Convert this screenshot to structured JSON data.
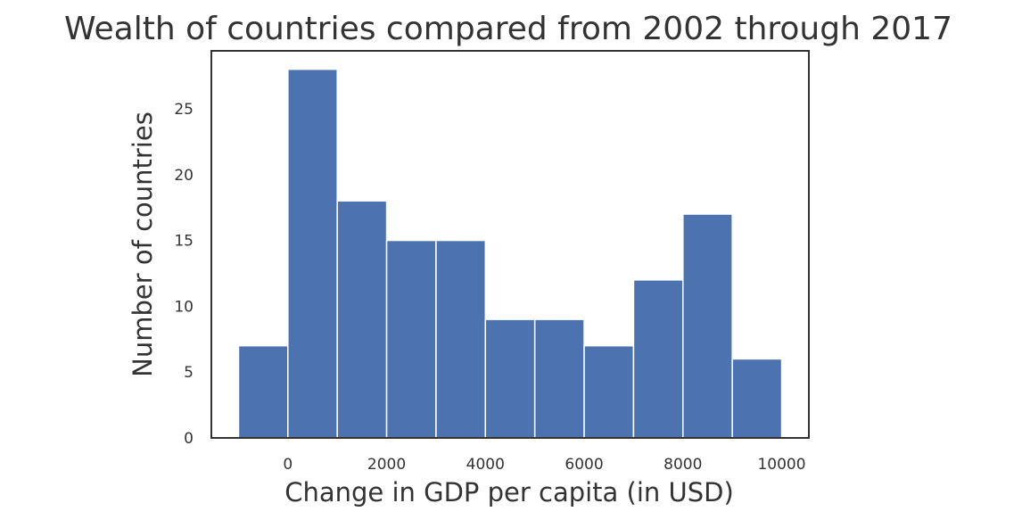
{
  "chart_data": {
    "type": "bar",
    "title": "Wealth of countries compared from 2002 through 2017",
    "xlabel": "Change in GDP per capita (in USD)",
    "ylabel": "Number of countries",
    "bin_edges": [
      -1000,
      0,
      1000,
      2000,
      3000,
      4000,
      5000,
      6000,
      7000,
      8000,
      9000,
      10000
    ],
    "values": [
      7,
      28,
      18,
      15,
      15,
      9,
      9,
      7,
      12,
      17,
      6
    ],
    "xlim": [
      -1550,
      10550
    ],
    "ylim": [
      0,
      29.4
    ],
    "xticks": [
      0,
      2000,
      4000,
      6000,
      8000,
      10000
    ],
    "xtick_labels": [
      "0",
      "2000",
      "4000",
      "6000",
      "8000",
      "10000"
    ],
    "yticks": [
      0,
      5,
      10,
      15,
      20,
      25
    ],
    "ytick_labels": [
      "0",
      "5",
      "10",
      "15",
      "20",
      "25"
    ],
    "bar_color": "#4c72b0",
    "grid": false,
    "legend": "none"
  }
}
